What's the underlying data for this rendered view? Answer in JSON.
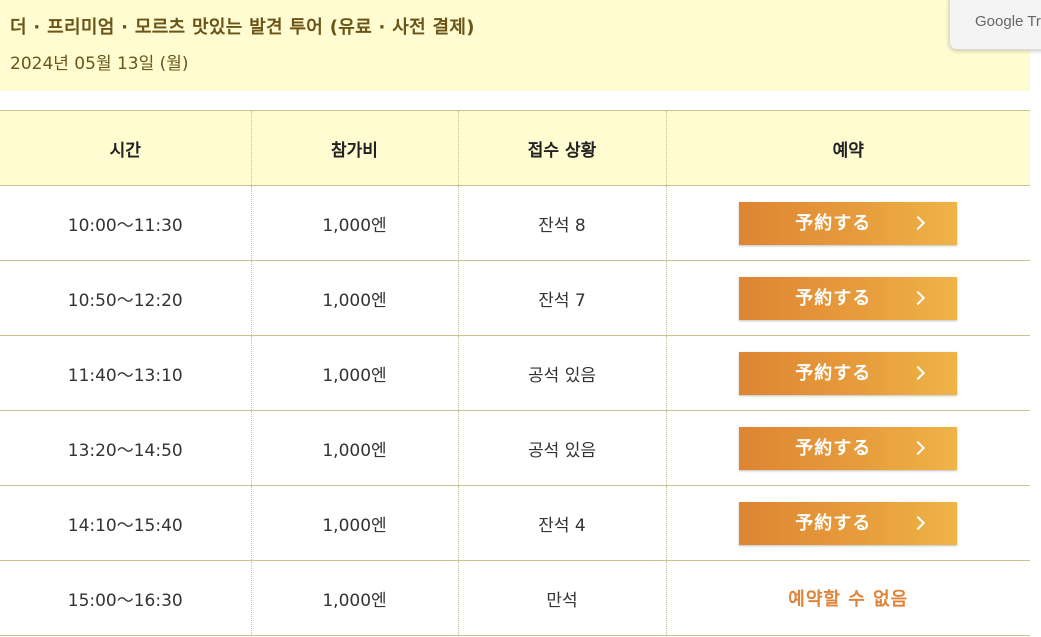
{
  "header": {
    "title": "더 · 프리미엄 · 모르츠 맛있는 발견 투어 (유료 · 사전 결제)",
    "date": "2024년 05월 13일 (월)"
  },
  "google_translate": {
    "label": "Google Tr"
  },
  "table": {
    "columns": [
      "시간",
      "참가비",
      "접수 상황",
      "예약"
    ],
    "rows": [
      {
        "time": "10:00〜11:30",
        "fee": "1,000엔",
        "status": "잔석 8",
        "action": "予約する",
        "available": true
      },
      {
        "time": "10:50〜12:20",
        "fee": "1,000엔",
        "status": "잔석 7",
        "action": "予約する",
        "available": true
      },
      {
        "time": "11:40〜13:10",
        "fee": "1,000엔",
        "status": "공석 있음",
        "action": "予約する",
        "available": true
      },
      {
        "time": "13:20〜14:50",
        "fee": "1,000엔",
        "status": "공석 있음",
        "action": "予約する",
        "available": true
      },
      {
        "time": "14:10〜15:40",
        "fee": "1,000엔",
        "status": "잔석 4",
        "action": "予約する",
        "available": true
      },
      {
        "time": "15:00〜16:30",
        "fee": "1,000엔",
        "status": "만석",
        "action": "예약할 수 없음",
        "available": false
      }
    ]
  },
  "colors": {
    "header_background": "#fefcd0",
    "title_text": "#6b5418",
    "button_gradient_start": "#dd8532",
    "button_gradient_end": "#efb447",
    "unavailable_text": "#e0843a"
  },
  "icons": {
    "button_arrow": "chevron-right-icon"
  }
}
